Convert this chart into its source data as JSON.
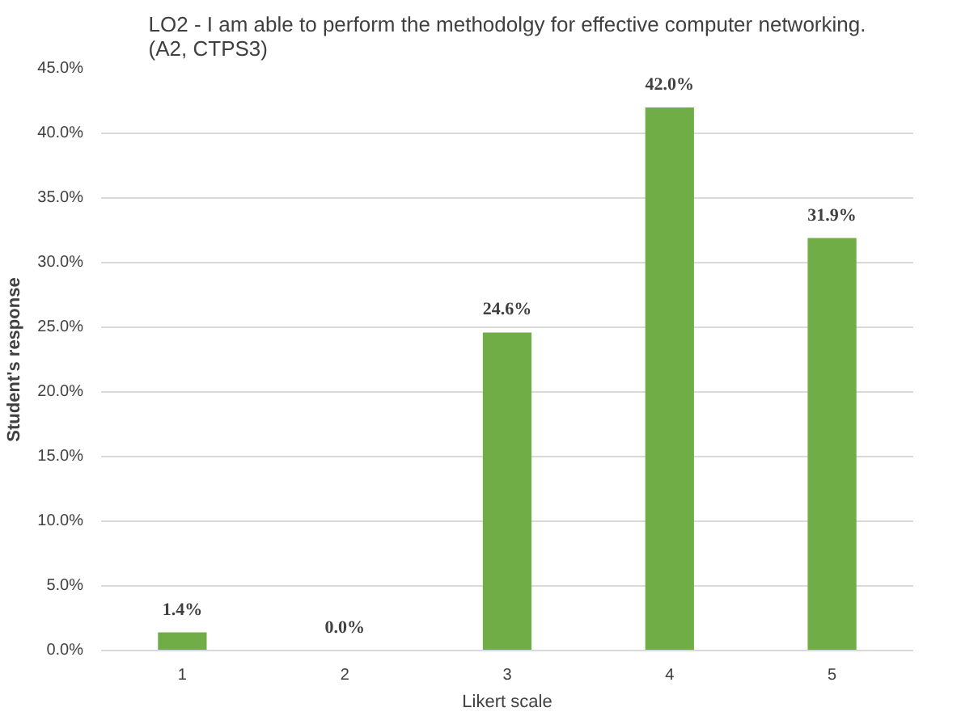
{
  "chart_data": {
    "type": "bar",
    "title": "LO2 - I am able to perform the methodolgy for effective computer networking.\n(A2, CTPS3)",
    "xlabel": "Likert scale",
    "ylabel": "Student's response",
    "categories": [
      "1",
      "2",
      "3",
      "4",
      "5"
    ],
    "values": [
      1.4,
      0.0,
      24.6,
      42.0,
      31.9
    ],
    "value_labels": [
      "1.4%",
      "0.0%",
      "24.6%",
      "42.0%",
      "31.9%"
    ],
    "color": "#70ad47",
    "ylim": [
      0,
      45
    ],
    "yticks": [
      {
        "value": 0,
        "label": "0.0%"
      },
      {
        "value": 5,
        "label": "5.0%"
      },
      {
        "value": 10,
        "label": "10.0%"
      },
      {
        "value": 15,
        "label": "15.0%"
      },
      {
        "value": 20,
        "label": "20.0%"
      },
      {
        "value": 25,
        "label": "25.0%"
      },
      {
        "value": 30,
        "label": "30.0%"
      },
      {
        "value": 35,
        "label": "35.0%"
      },
      {
        "value": 40,
        "label": "40.0%"
      },
      {
        "value": 45,
        "label": "45.0%"
      }
    ],
    "grid": "y"
  }
}
